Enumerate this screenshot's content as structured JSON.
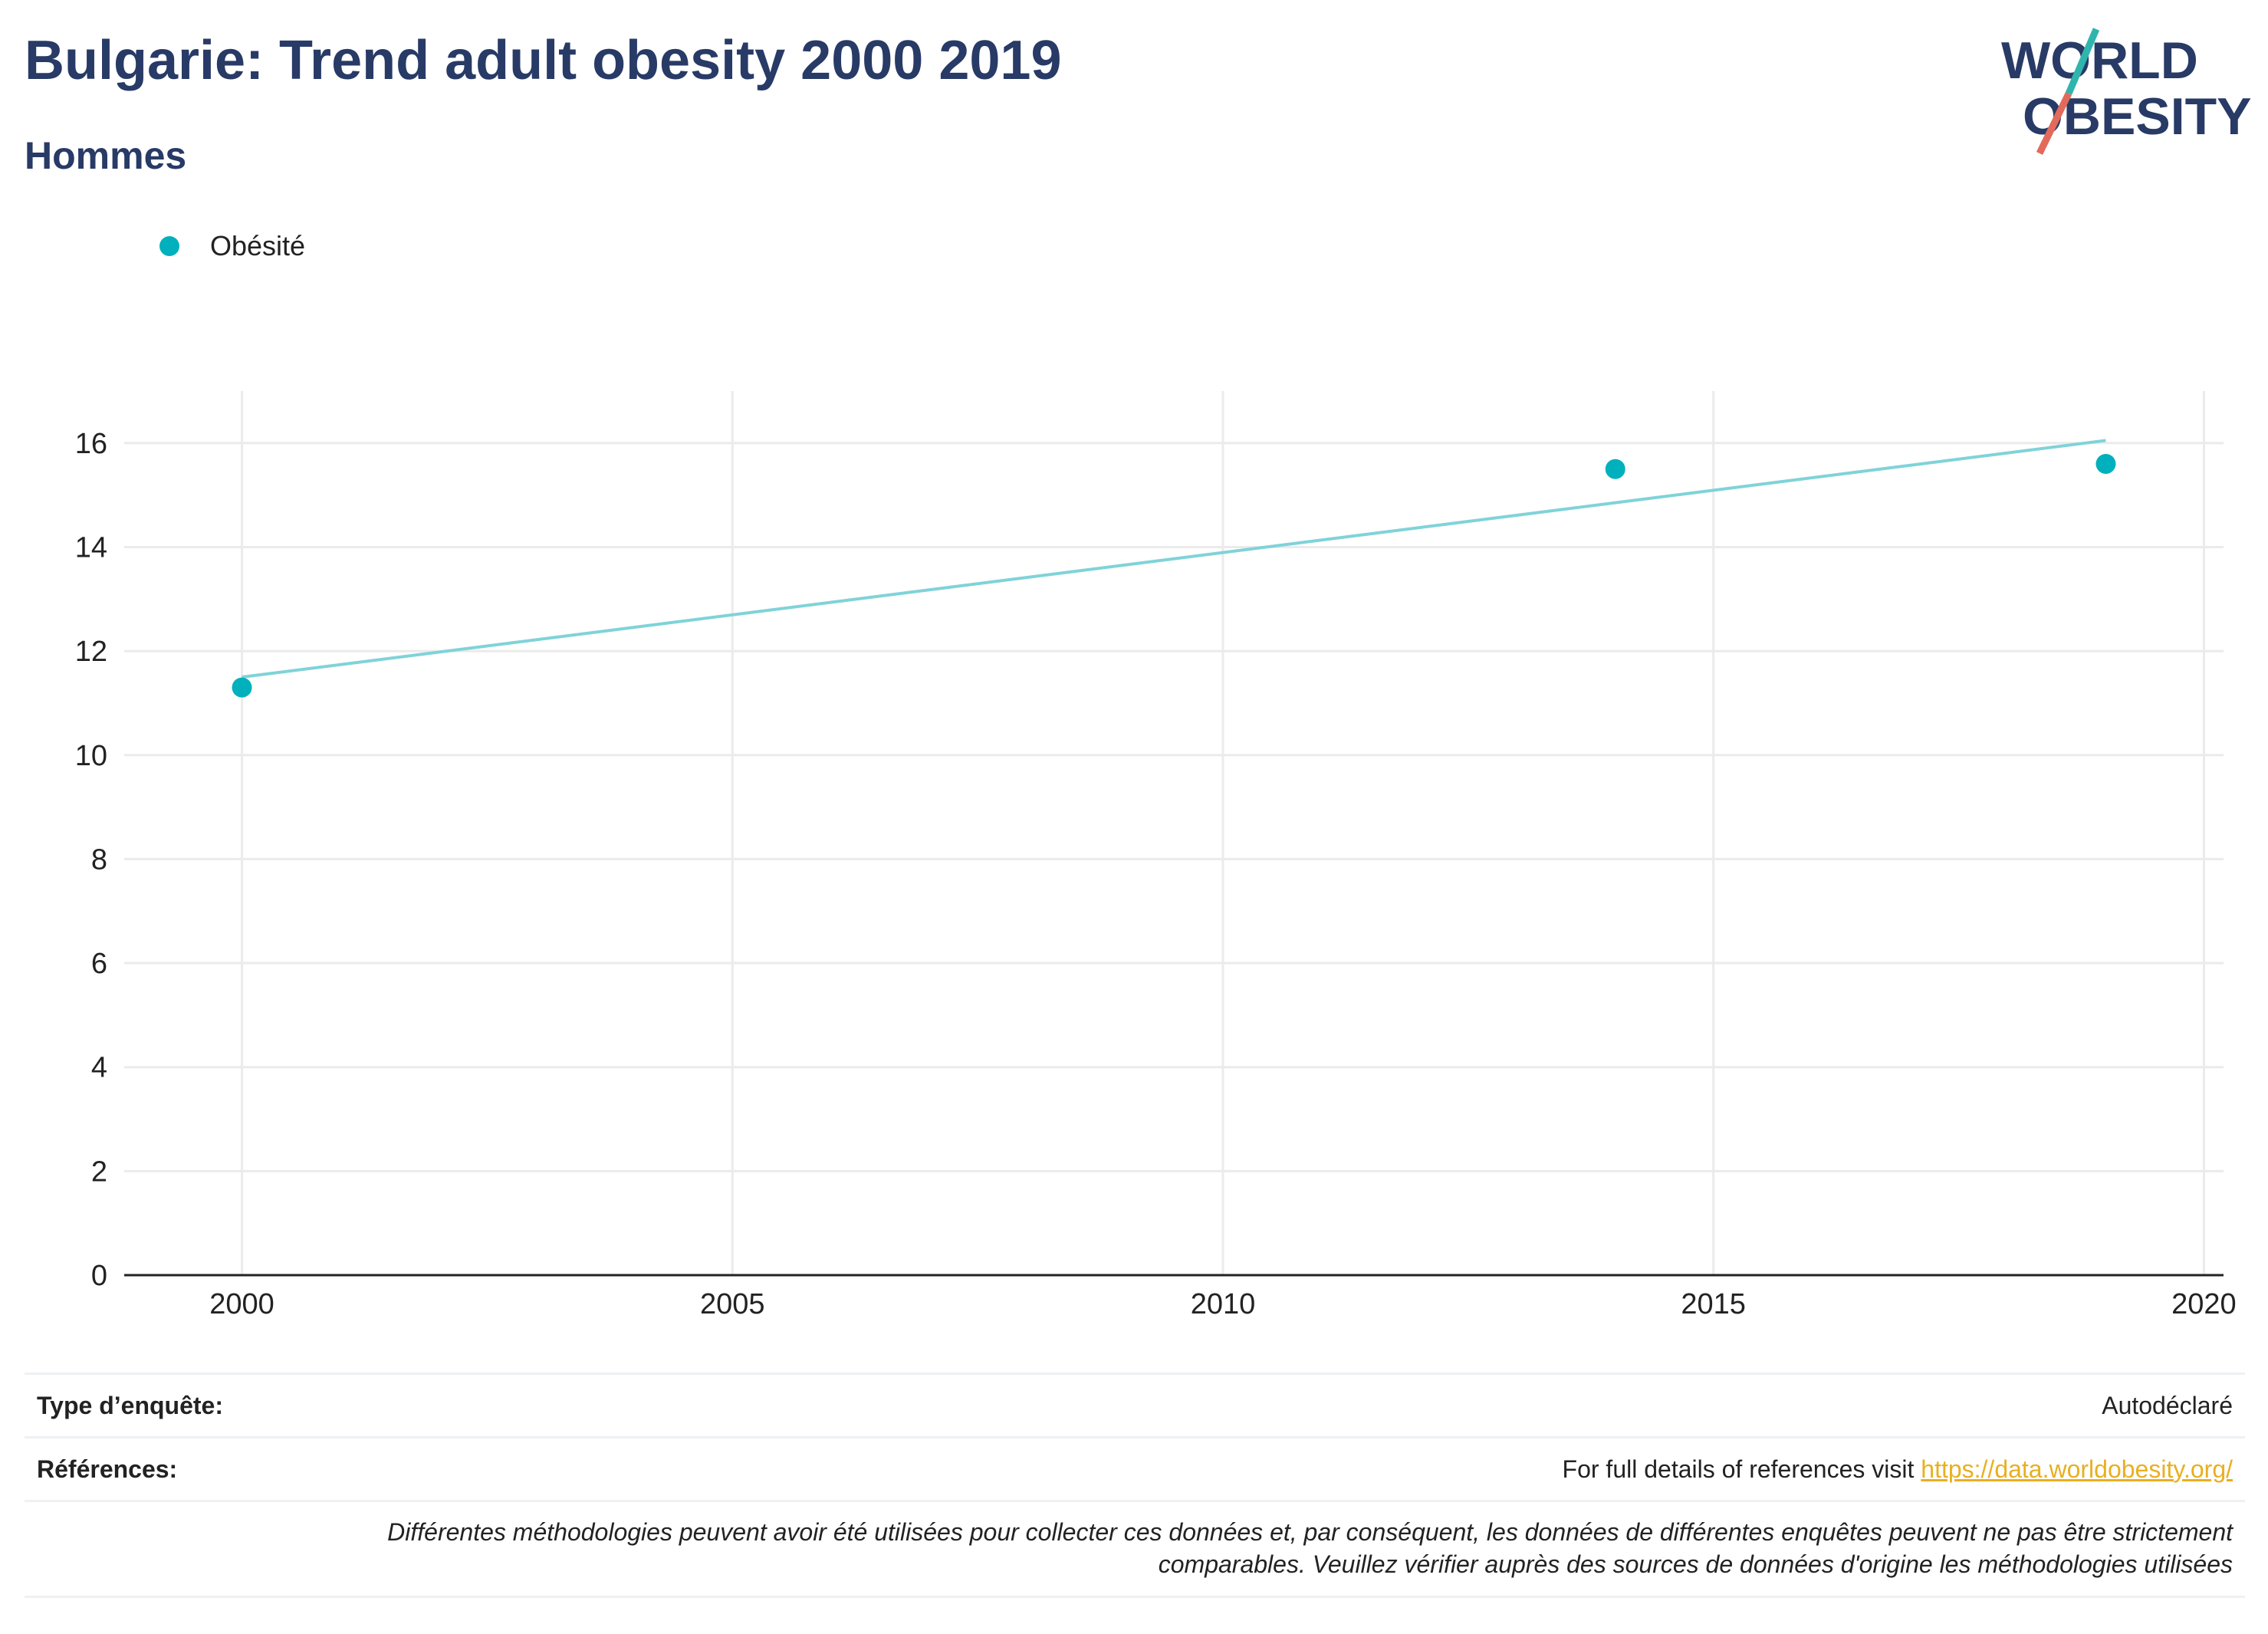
{
  "header": {
    "title": "Bulgarie: Trend adult obesity 2000 2019",
    "subtitle": "Hommes"
  },
  "logo": {
    "line1": "WORLD",
    "line2": "OBESITY"
  },
  "legend": {
    "label": "Obésité",
    "color": "#00b0bd"
  },
  "chart_data": {
    "type": "scatter",
    "series": [
      {
        "name": "Obésité",
        "x": [
          2000,
          2014,
          2019
        ],
        "y": [
          11.3,
          15.5,
          15.6
        ]
      }
    ],
    "trendline": {
      "x": [
        2000,
        2019
      ],
      "y": [
        11.5,
        16.05
      ]
    },
    "xlim": [
      1998.8,
      2020.2
    ],
    "ylim": [
      0,
      17
    ],
    "xticks": [
      2000,
      2005,
      2010,
      2015,
      2020
    ],
    "yticks": [
      0,
      2,
      4,
      6,
      8,
      10,
      12,
      14,
      16
    ],
    "grid": true,
    "colors": {
      "points": "#00b0bd",
      "trendline": "#7fd3d9",
      "grid": "#ebebeb",
      "axis": "#222222"
    }
  },
  "footer": {
    "survey_label": "Type d’enquête:",
    "survey_value": "Autodéclaré",
    "references_label": "Références:",
    "references_text": "For full details of references visit ",
    "references_link": "https://data.worldobesity.org/",
    "note_line1": "Différentes méthodologies peuvent avoir été utilisées pour collecter ces données et, par conséquent, les données de différentes enquêtes peuvent ne pas être strictement",
    "note_line2": "comparables. Veuillez vérifier auprès des sources de données d'origine les méthodologies utilisées"
  }
}
